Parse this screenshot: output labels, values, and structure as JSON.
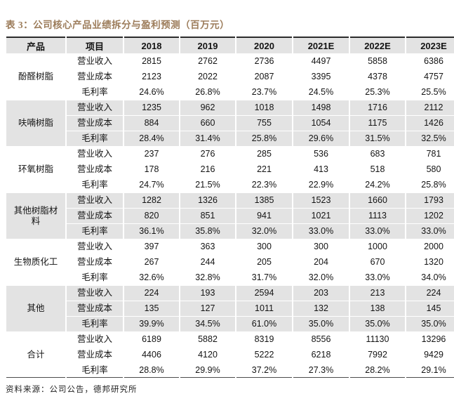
{
  "title": "表 3：公司核心产品业绩拆分与盈利预测（百万元）",
  "source_note": "资料来源：公司公告，德邦研究所",
  "colors": {
    "title_text": "#9C7C5A",
    "row_stripe": "#E3E3E3",
    "top_border": "#2B2B2B",
    "bottom_border": "#4D4D4D"
  },
  "chart_data": {
    "type": "table",
    "columns": [
      "产品",
      "项目",
      "2018",
      "2019",
      "2020",
      "2021E",
      "2022E",
      "2023E"
    ],
    "sections": [
      {
        "product": "酚醛树脂",
        "rows": [
          {
            "item": "营业收入",
            "values": [
              "2815",
              "2762",
              "2736",
              "4497",
              "5858",
              "6386"
            ]
          },
          {
            "item": "营业成本",
            "values": [
              "2123",
              "2022",
              "2087",
              "3395",
              "4378",
              "4757"
            ]
          },
          {
            "item": "毛利率",
            "values": [
              "24.6%",
              "26.8%",
              "23.7%",
              "24.5%",
              "25.3%",
              "25.5%"
            ]
          }
        ]
      },
      {
        "product": "呋喃树脂",
        "rows": [
          {
            "item": "营业收入",
            "values": [
              "1235",
              "962",
              "1018",
              "1498",
              "1716",
              "2112"
            ]
          },
          {
            "item": "营业成本",
            "values": [
              "884",
              "660",
              "755",
              "1054",
              "1175",
              "1426"
            ]
          },
          {
            "item": "毛利率",
            "values": [
              "28.4%",
              "31.4%",
              "25.8%",
              "29.6%",
              "31.5%",
              "32.5%"
            ]
          }
        ]
      },
      {
        "product": "环氧树脂",
        "rows": [
          {
            "item": "营业收入",
            "values": [
              "237",
              "276",
              "285",
              "536",
              "683",
              "781"
            ]
          },
          {
            "item": "营业成本",
            "values": [
              "178",
              "216",
              "221",
              "413",
              "518",
              "580"
            ]
          },
          {
            "item": "毛利率",
            "values": [
              "24.7%",
              "21.5%",
              "22.3%",
              "22.9%",
              "24.2%",
              "25.8%"
            ]
          }
        ]
      },
      {
        "product": "其他树脂材料",
        "rows": [
          {
            "item": "营业收入",
            "values": [
              "1282",
              "1326",
              "1385",
              "1523",
              "1660",
              "1793"
            ]
          },
          {
            "item": "营业成本",
            "values": [
              "820",
              "851",
              "941",
              "1021",
              "1113",
              "1202"
            ]
          },
          {
            "item": "毛利率",
            "values": [
              "36.1%",
              "35.8%",
              "32.0%",
              "33.0%",
              "33.0%",
              "33.0%"
            ]
          }
        ]
      },
      {
        "product": "生物质化工",
        "rows": [
          {
            "item": "营业收入",
            "values": [
              "397",
              "363",
              "300",
              "300",
              "1000",
              "2000"
            ]
          },
          {
            "item": "营业成本",
            "values": [
              "267",
              "244",
              "205",
              "204",
              "670",
              "1320"
            ]
          },
          {
            "item": "毛利率",
            "values": [
              "32.6%",
              "32.8%",
              "31.7%",
              "32.0%",
              "33.0%",
              "34.0%"
            ]
          }
        ]
      },
      {
        "product": "其他",
        "rows": [
          {
            "item": "营业收入",
            "values": [
              "224",
              "193",
              "2594",
              "203",
              "213",
              "224"
            ]
          },
          {
            "item": "营业成本",
            "values": [
              "135",
              "127",
              "1011",
              "132",
              "138",
              "145"
            ]
          },
          {
            "item": "毛利率",
            "values": [
              "39.9%",
              "34.5%",
              "61.0%",
              "35.0%",
              "35.0%",
              "35.0%"
            ]
          }
        ]
      },
      {
        "product": "合计",
        "rows": [
          {
            "item": "营业收入",
            "values": [
              "6189",
              "5882",
              "8319",
              "8556",
              "11130",
              "13296"
            ]
          },
          {
            "item": "营业成本",
            "values": [
              "4406",
              "4120",
              "5222",
              "6218",
              "7992",
              "9429"
            ]
          },
          {
            "item": "毛利率",
            "values": [
              "28.8%",
              "29.9%",
              "37.2%",
              "27.3%",
              "28.2%",
              "29.1%"
            ]
          }
        ]
      }
    ]
  }
}
